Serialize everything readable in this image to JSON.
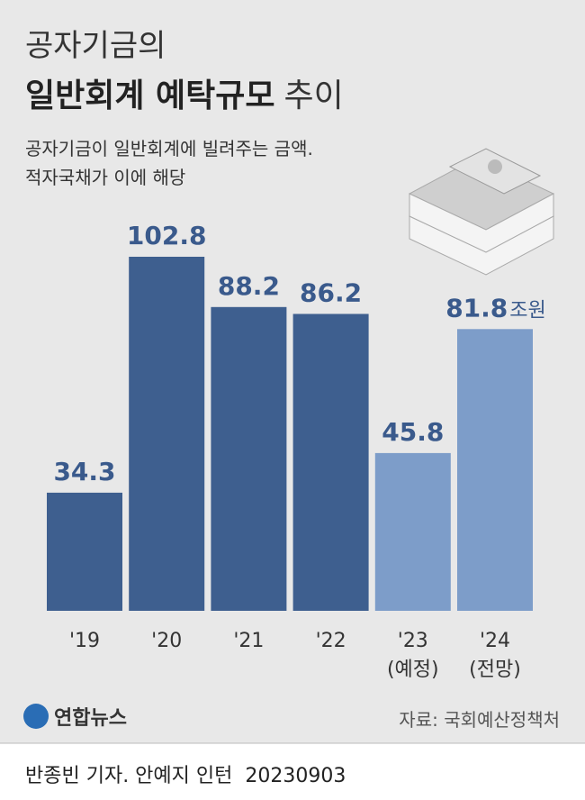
{
  "chart_data": {
    "type": "bar",
    "title": "공자기금의",
    "title_bold": "일반회계 예탁규모",
    "title_rest": "추이",
    "subtitle": [
      "공자기금이 일반회계에 빌려주는 금액.",
      "적자국채가 이에 해당"
    ],
    "categories": [
      [
        "'19"
      ],
      [
        "'20"
      ],
      [
        "'21"
      ],
      [
        "'22"
      ],
      [
        "'23",
        "(예정)"
      ],
      [
        "'24",
        "(전망)"
      ]
    ],
    "values": [
      34.3,
      102.8,
      88.2,
      86.2,
      45.8,
      81.8
    ],
    "unit": "조원",
    "colors": [
      "#3e5f8f",
      "#3e5f8f",
      "#3e5f8f",
      "#3e5f8f",
      "#7d9dc9",
      "#7d9dc9"
    ],
    "label_color": "#3a5a8c"
  },
  "logo": "연합뉴스",
  "source": "자료: 국회예산정책처",
  "credit": "반종빈 기자. 안예지 인턴",
  "date": "20230903"
}
